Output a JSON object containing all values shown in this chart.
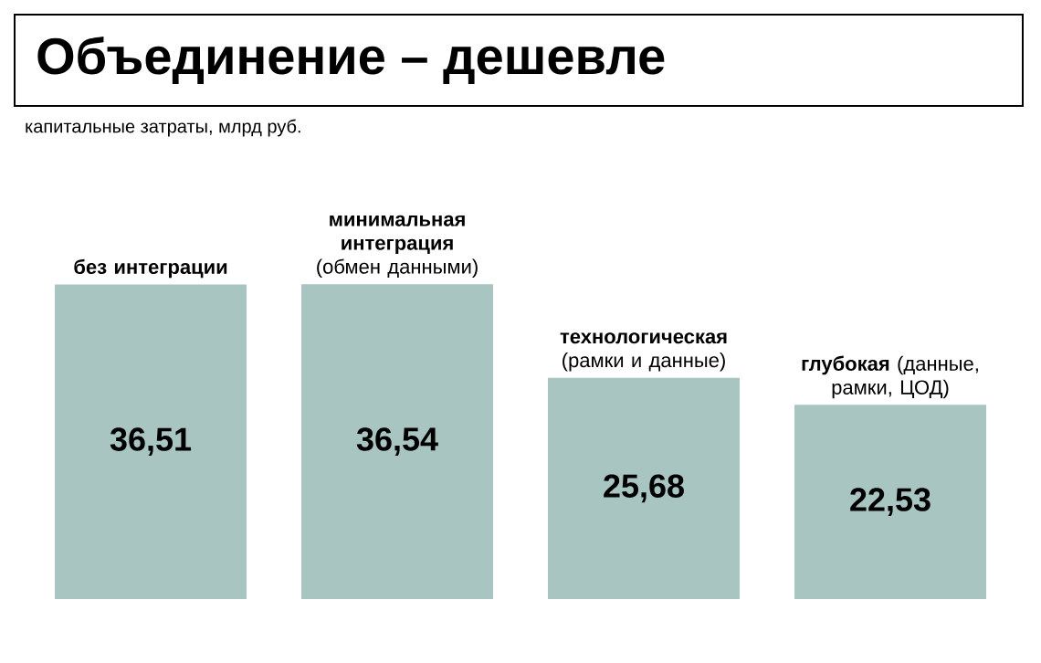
{
  "chart_data": {
    "type": "bar",
    "title": "Объединение – дешевле",
    "ylabel": "капитальные затраты, млрд руб.",
    "categories": [
      "**без интеграции**",
      "**минимальная интеграция** (обмен данными)",
      "**технологическая** (рамки и данные)",
      "**глубокая** (данные, рамки, ЦОД)"
    ],
    "values": [
      36.51,
      36.54,
      25.68,
      22.53
    ],
    "value_labels": [
      "36,51",
      "36,54",
      "25,68",
      "22,53"
    ],
    "color": "#a8c5c2"
  }
}
